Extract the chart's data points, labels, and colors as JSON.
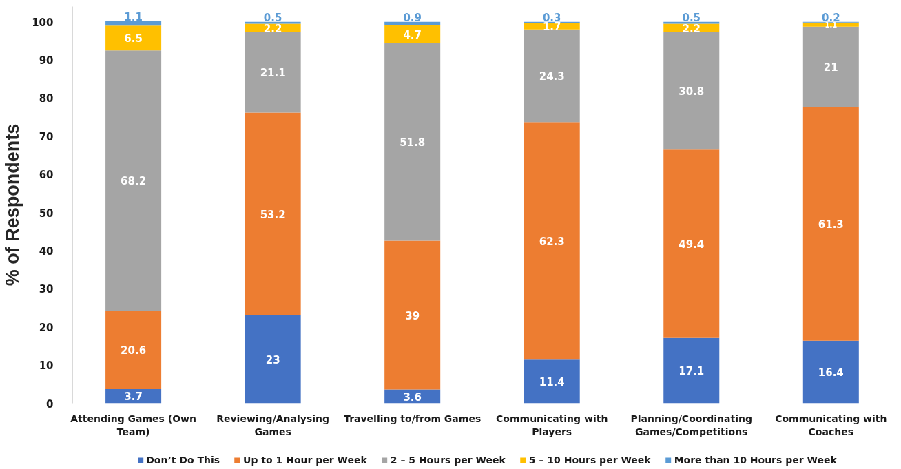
{
  "chart_data": {
    "type": "bar",
    "stacked": true,
    "ylabel": "% of Respondents",
    "categories": [
      "Attending Games (Own Team)",
      "Reviewing/Analysing Games",
      "Travelling to/from Games",
      "Communicating with Players",
      "Planning/Coordinating Games/Competitions",
      "Communicating with Coaches"
    ],
    "series": [
      {
        "name": "Don’t Do This",
        "color": "#4472c4",
        "values": [
          3.7,
          23,
          3.6,
          11.4,
          17.1,
          16.4
        ]
      },
      {
        "name": "Up to 1 Hour per Week",
        "color": "#ed7d31",
        "values": [
          20.6,
          53.2,
          39,
          62.3,
          49.4,
          61.3
        ]
      },
      {
        "name": "2 – 5 Hours per Week",
        "color": "#a5a5a5",
        "values": [
          68.2,
          21.1,
          51.8,
          24.3,
          30.8,
          21
        ]
      },
      {
        "name": "5 – 10 Hours per Week",
        "color": "#ffc000",
        "values": [
          6.5,
          2.2,
          4.7,
          1.7,
          2.2,
          1.1
        ]
      },
      {
        "name": "More than 10 Hours per Week",
        "color": "#5b9bd5",
        "values": [
          1.1,
          0.5,
          0.9,
          0.3,
          0.5,
          0.2
        ]
      }
    ],
    "ylim": [
      0,
      104
    ],
    "yticks": [
      0,
      10,
      20,
      30,
      40,
      50,
      60,
      70,
      80,
      90,
      100
    ],
    "data_labels": true,
    "legend": "bottom",
    "grid": false
  }
}
